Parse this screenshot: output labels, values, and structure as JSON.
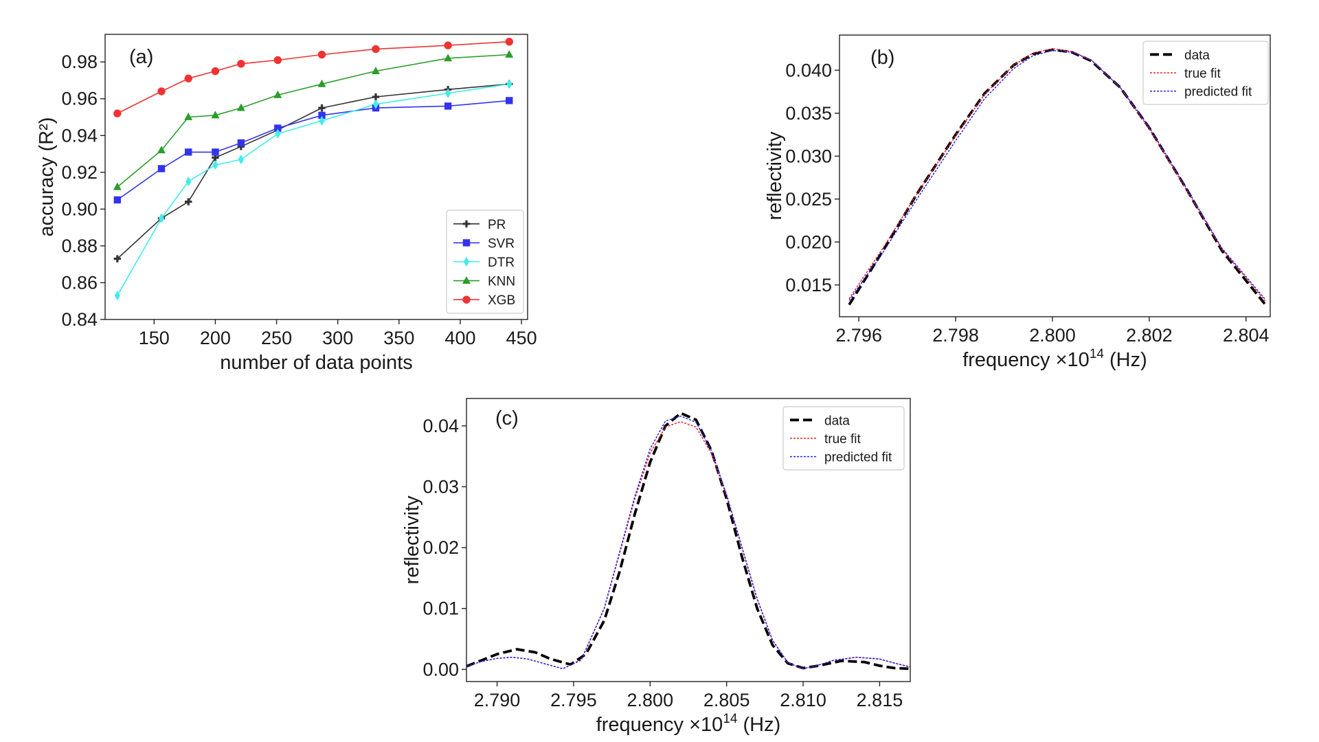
{
  "chart_data": [
    {
      "id": "a",
      "type": "line",
      "panel_label": "(a)",
      "xlabel": "number of data points",
      "ylabel": "accuracy (R²)",
      "xlim": [
        110,
        455
      ],
      "ylim": [
        0.84,
        0.995
      ],
      "xticks": [
        150,
        200,
        250,
        300,
        350,
        400,
        450
      ],
      "yticks": [
        0.84,
        0.86,
        0.88,
        0.9,
        0.92,
        0.94,
        0.96,
        0.98
      ],
      "ytick_decimals": 2,
      "grid": false,
      "legend_position": "lower-right",
      "x": [
        120,
        156,
        178,
        200,
        221,
        251,
        287,
        331,
        390,
        440
      ],
      "series": [
        {
          "name": "PR",
          "color": "#333333",
          "marker": "plus",
          "values": [
            0.873,
            0.895,
            0.904,
            0.928,
            0.934,
            0.943,
            0.955,
            0.961,
            0.965,
            0.968
          ]
        },
        {
          "name": "SVR",
          "color": "#3333ee",
          "marker": "square",
          "values": [
            0.905,
            0.922,
            0.931,
            0.931,
            0.936,
            0.944,
            0.951,
            0.955,
            0.956,
            0.959
          ]
        },
        {
          "name": "DTR",
          "color": "#40ecec",
          "marker": "diamond",
          "values": [
            0.853,
            0.895,
            0.915,
            0.924,
            0.927,
            0.941,
            0.948,
            0.957,
            0.963,
            0.968
          ]
        },
        {
          "name": "KNN",
          "color": "#2a9d2a",
          "marker": "triangle",
          "values": [
            0.912,
            0.932,
            0.95,
            0.951,
            0.955,
            0.962,
            0.968,
            0.975,
            0.982,
            0.984
          ]
        },
        {
          "name": "XGB",
          "color": "#ee3333",
          "marker": "circle",
          "values": [
            0.952,
            0.964,
            0.971,
            0.975,
            0.979,
            0.981,
            0.984,
            0.987,
            0.989,
            0.991
          ]
        }
      ]
    },
    {
      "id": "b",
      "type": "line",
      "panel_label": "(b)",
      "xlabel": "frequency ×10",
      "xlabel_exponent": "14",
      "xlabel_unit": " (Hz)",
      "ylabel": "reflectivity",
      "xlim": [
        2.7956,
        2.8045
      ],
      "ylim": [
        0.0113,
        0.0441
      ],
      "xticks": [
        2.796,
        2.798,
        2.8,
        2.802,
        2.804
      ],
      "xtick_decimals": 3,
      "yticks": [
        0.015,
        0.02,
        0.025,
        0.03,
        0.035,
        0.04
      ],
      "ytick_decimals": 3,
      "grid": false,
      "legend_position": "top-right",
      "series": [
        {
          "name": "data",
          "color": "#000000",
          "style": "dash-thick",
          "x": [
            2.7958,
            2.7965,
            2.7972,
            2.798,
            2.7986,
            2.7992,
            2.7996,
            2.8,
            2.8004,
            2.8008,
            2.8014,
            2.802,
            2.8028,
            2.8035,
            2.8044
          ],
          "y": [
            0.0127,
            0.019,
            0.0256,
            0.0325,
            0.0373,
            0.0406,
            0.0419,
            0.0424,
            0.0421,
            0.0411,
            0.038,
            0.0333,
            0.0259,
            0.019,
            0.0127
          ]
        },
        {
          "name": "true fit",
          "color": "#ee2222",
          "style": "dot",
          "x": [
            2.7958,
            2.7965,
            2.7972,
            2.798,
            2.7986,
            2.7992,
            2.7996,
            2.8,
            2.8004,
            2.8008,
            2.8014,
            2.802,
            2.8028,
            2.8035,
            2.8044
          ],
          "y": [
            0.0134,
            0.0193,
            0.0256,
            0.0324,
            0.0372,
            0.0406,
            0.042,
            0.0425,
            0.0422,
            0.0412,
            0.038,
            0.0332,
            0.0258,
            0.0192,
            0.0131
          ]
        },
        {
          "name": "predicted fit",
          "color": "#2222ee",
          "style": "dot",
          "x": [
            2.7958,
            2.7965,
            2.7972,
            2.798,
            2.7986,
            2.7992,
            2.7996,
            2.8,
            2.8004,
            2.8008,
            2.8014,
            2.802,
            2.8028,
            2.8035,
            2.8044
          ],
          "y": [
            0.0132,
            0.0188,
            0.025,
            0.0318,
            0.0367,
            0.0402,
            0.0417,
            0.0423,
            0.0421,
            0.0412,
            0.038,
            0.0334,
            0.026,
            0.0193,
            0.0133
          ]
        }
      ]
    },
    {
      "id": "c",
      "type": "line",
      "panel_label": "(c)",
      "xlabel": "frequency ×10",
      "xlabel_exponent": "14",
      "xlabel_unit": " (Hz)",
      "ylabel": "reflectivity",
      "xlim": [
        2.788,
        2.817
      ],
      "ylim": [
        -0.002,
        0.0445
      ],
      "xticks": [
        2.79,
        2.795,
        2.8,
        2.805,
        2.81,
        2.815
      ],
      "xtick_decimals": 3,
      "yticks": [
        0.0,
        0.01,
        0.02,
        0.03,
        0.04
      ],
      "ytick_decimals": 2,
      "grid": false,
      "legend_position": "top-right",
      "series": [
        {
          "name": "data",
          "color": "#000000",
          "style": "dash-thick",
          "x": [
            2.788,
            2.789,
            2.79,
            2.7913,
            2.7925,
            2.7935,
            2.7948,
            2.7958,
            2.797,
            2.798,
            2.799,
            2.8,
            2.801,
            2.802,
            2.803,
            2.804,
            2.805,
            2.806,
            2.807,
            2.808,
            2.809,
            2.81,
            2.811,
            2.8125,
            2.814,
            2.815,
            2.816,
            2.817
          ],
          "y": [
            0.0005,
            0.0015,
            0.0025,
            0.0033,
            0.0028,
            0.0017,
            0.0008,
            0.0025,
            0.008,
            0.016,
            0.0255,
            0.034,
            0.04,
            0.0421,
            0.041,
            0.036,
            0.028,
            0.0185,
            0.01,
            0.004,
            0.001,
            0.0002,
            0.0006,
            0.0014,
            0.0012,
            0.0006,
            0.0002,
            0.0001
          ]
        },
        {
          "name": "true fit",
          "color": "#ee2222",
          "style": "dot",
          "x": [
            2.788,
            2.789,
            2.79,
            2.791,
            2.792,
            2.793,
            2.7943,
            2.7955,
            2.797,
            2.798,
            2.799,
            2.8,
            2.801,
            2.802,
            2.803,
            2.804,
            2.805,
            2.806,
            2.807,
            2.808,
            2.809,
            2.81,
            2.811,
            2.812,
            2.8135,
            2.815,
            2.816,
            2.817
          ],
          "y": [
            0.0005,
            0.0013,
            0.0018,
            0.002,
            0.0017,
            0.001,
            0.0001,
            0.0015,
            0.01,
            0.019,
            0.028,
            0.0355,
            0.0398,
            0.0407,
            0.0398,
            0.0355,
            0.0285,
            0.02,
            0.0115,
            0.0048,
            0.0011,
            0.0001,
            0.0007,
            0.0015,
            0.002,
            0.0017,
            0.001,
            0.0004
          ]
        },
        {
          "name": "predicted fit",
          "color": "#2222ee",
          "style": "dot",
          "x": [
            2.788,
            2.789,
            2.79,
            2.791,
            2.792,
            2.793,
            2.7943,
            2.7955,
            2.797,
            2.798,
            2.799,
            2.8,
            2.801,
            2.802,
            2.803,
            2.804,
            2.805,
            2.806,
            2.807,
            2.808,
            2.809,
            2.81,
            2.811,
            2.812,
            2.8135,
            2.815,
            2.816,
            2.817
          ],
          "y": [
            0.0005,
            0.0013,
            0.0018,
            0.002,
            0.0017,
            0.001,
            0.0001,
            0.0016,
            0.01,
            0.0192,
            0.0284,
            0.0362,
            0.0408,
            0.0416,
            0.0406,
            0.036,
            0.0287,
            0.0201,
            0.0116,
            0.0048,
            0.0011,
            0.0001,
            0.0007,
            0.0015,
            0.002,
            0.0017,
            0.001,
            0.0004
          ]
        }
      ]
    }
  ]
}
